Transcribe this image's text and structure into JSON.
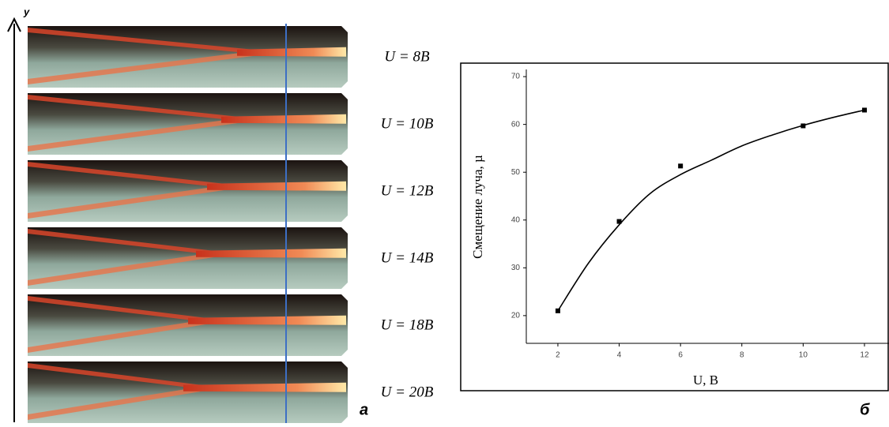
{
  "panel_a": {
    "axis_label": "y",
    "letter": "а",
    "labels": [
      "U = 8В",
      "U = 10В",
      "U = 12В",
      "U = 14В",
      "U = 18В",
      "U = 20В"
    ]
  },
  "panel_b_letter": "б",
  "chart_data": {
    "type": "scatter",
    "x_label": "U, В",
    "y_label": "Смещение луча, µ",
    "xlim": [
      0.97,
      12.8
    ],
    "ylim": [
      14.2,
      71.5
    ],
    "xticks": [
      2,
      4,
      6,
      8,
      10,
      12
    ],
    "yticks": [
      20,
      30,
      40,
      50,
      60,
      70
    ],
    "series": [
      {
        "color": "#000000",
        "x": [
          2,
          4,
          6,
          10,
          12
        ],
        "values": [
          21,
          39.7,
          51.3,
          59.7,
          63
        ]
      },
      {
        "color": "#000000",
        "line": true,
        "x": [
          2,
          3,
          4,
          5,
          6,
          7,
          8,
          9,
          10,
          11,
          12
        ],
        "values": [
          21,
          31,
          39,
          45.5,
          49.5,
          52.5,
          55.5,
          57.8,
          59.8,
          61.5,
          63
        ]
      }
    ]
  }
}
